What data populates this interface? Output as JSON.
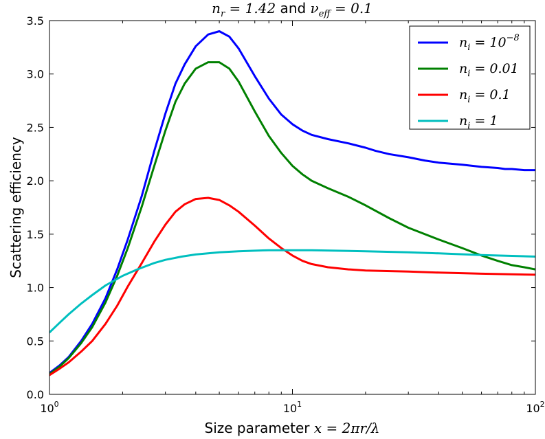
{
  "chart_data": {
    "type": "line",
    "title": "n_r = 1.42 and ν_eff = 0.1",
    "title_parts": {
      "part1": "n",
      "part1_sub": "r",
      "part1_value": " = 1.42",
      "middle": " and ",
      "part2": "ν",
      "part2_sub": "eff",
      "part2_value": " = 0.1"
    },
    "xlabel": "Size parameter x = 2πr/λ",
    "xlabel_parts": {
      "text": "Size parameter ",
      "math": "x = 2πr/λ"
    },
    "ylabel": "Scattering efficiency",
    "x_scale": "log",
    "xlim": [
      1,
      100
    ],
    "ylim": [
      0,
      3.5
    ],
    "x_ticks": [
      {
        "value": 1,
        "base": "10",
        "exp": "0"
      },
      {
        "value": 10,
        "base": "10",
        "exp": "1"
      },
      {
        "value": 100,
        "base": "10",
        "exp": "2"
      }
    ],
    "y_ticks": [
      "0.0",
      "0.5",
      "1.0",
      "1.5",
      "2.0",
      "2.5",
      "3.0",
      "3.5"
    ],
    "grid": false,
    "legend_position": "top-right",
    "series": [
      {
        "name": "n_i = 10^-8",
        "legend": {
          "sym": "n",
          "sub": "i",
          "eq": " = ",
          "base": "10",
          "sup": "−8"
        },
        "color": "#0000ff",
        "x": [
          1,
          1.1,
          1.2,
          1.35,
          1.5,
          1.7,
          1.9,
          2.1,
          2.4,
          2.7,
          3,
          3.3,
          3.6,
          4,
          4.5,
          5,
          5.5,
          6,
          7,
          8,
          9,
          10,
          11,
          12,
          14,
          17,
          20,
          22,
          25,
          30,
          35,
          40,
          50,
          60,
          70,
          75,
          80,
          90,
          100
        ],
        "y": [
          0.2,
          0.27,
          0.35,
          0.5,
          0.66,
          0.9,
          1.17,
          1.45,
          1.86,
          2.28,
          2.63,
          2.91,
          3.09,
          3.26,
          3.37,
          3.4,
          3.35,
          3.24,
          2.98,
          2.77,
          2.62,
          2.53,
          2.47,
          2.43,
          2.39,
          2.35,
          2.31,
          2.28,
          2.25,
          2.22,
          2.19,
          2.17,
          2.15,
          2.13,
          2.12,
          2.11,
          2.11,
          2.1,
          2.1
        ]
      },
      {
        "name": "n_i = 0.01",
        "legend": {
          "sym": "n",
          "sub": "i",
          "eq": " = ",
          "val": "0.01"
        },
        "color": "#008000",
        "x": [
          1,
          1.1,
          1.2,
          1.35,
          1.5,
          1.7,
          1.9,
          2.1,
          2.4,
          2.7,
          3,
          3.3,
          3.6,
          4,
          4.5,
          5,
          5.5,
          6,
          7,
          8,
          9,
          10,
          11,
          12,
          14,
          17,
          20,
          25,
          30,
          40,
          50,
          60,
          70,
          80,
          90,
          100
        ],
        "y": [
          0.19,
          0.26,
          0.34,
          0.48,
          0.63,
          0.86,
          1.11,
          1.37,
          1.76,
          2.14,
          2.47,
          2.74,
          2.91,
          3.05,
          3.11,
          3.11,
          3.05,
          2.93,
          2.65,
          2.42,
          2.26,
          2.14,
          2.06,
          2.0,
          1.93,
          1.85,
          1.77,
          1.65,
          1.56,
          1.45,
          1.37,
          1.3,
          1.25,
          1.21,
          1.19,
          1.17
        ]
      },
      {
        "name": "n_i = 0.1",
        "legend": {
          "sym": "n",
          "sub": "i",
          "eq": " = ",
          "val": "0.1"
        },
        "color": "#ff0000",
        "x": [
          1,
          1.1,
          1.2,
          1.35,
          1.5,
          1.7,
          1.9,
          2.1,
          2.4,
          2.7,
          3,
          3.3,
          3.6,
          4,
          4.5,
          5,
          5.5,
          6,
          7,
          8,
          9,
          10,
          11,
          12,
          14,
          17,
          20,
          30,
          40,
          60,
          100
        ],
        "y": [
          0.18,
          0.24,
          0.3,
          0.4,
          0.5,
          0.66,
          0.83,
          1.01,
          1.23,
          1.43,
          1.59,
          1.71,
          1.78,
          1.83,
          1.84,
          1.82,
          1.77,
          1.71,
          1.58,
          1.46,
          1.37,
          1.3,
          1.25,
          1.22,
          1.19,
          1.17,
          1.16,
          1.15,
          1.14,
          1.13,
          1.12
        ]
      },
      {
        "name": "n_i = 1",
        "legend": {
          "sym": "n",
          "sub": "i",
          "eq": " = ",
          "val": "1"
        },
        "color": "#00bfbf",
        "x": [
          1,
          1.1,
          1.2,
          1.35,
          1.5,
          1.7,
          2,
          2.3,
          2.7,
          3,
          3.5,
          4,
          5,
          6,
          7,
          8,
          10,
          12,
          15,
          20,
          30,
          40,
          60,
          100
        ],
        "y": [
          0.58,
          0.67,
          0.75,
          0.85,
          0.93,
          1.02,
          1.11,
          1.17,
          1.23,
          1.26,
          1.29,
          1.31,
          1.33,
          1.34,
          1.345,
          1.35,
          1.35,
          1.35,
          1.345,
          1.34,
          1.33,
          1.32,
          1.305,
          1.29
        ]
      }
    ]
  }
}
